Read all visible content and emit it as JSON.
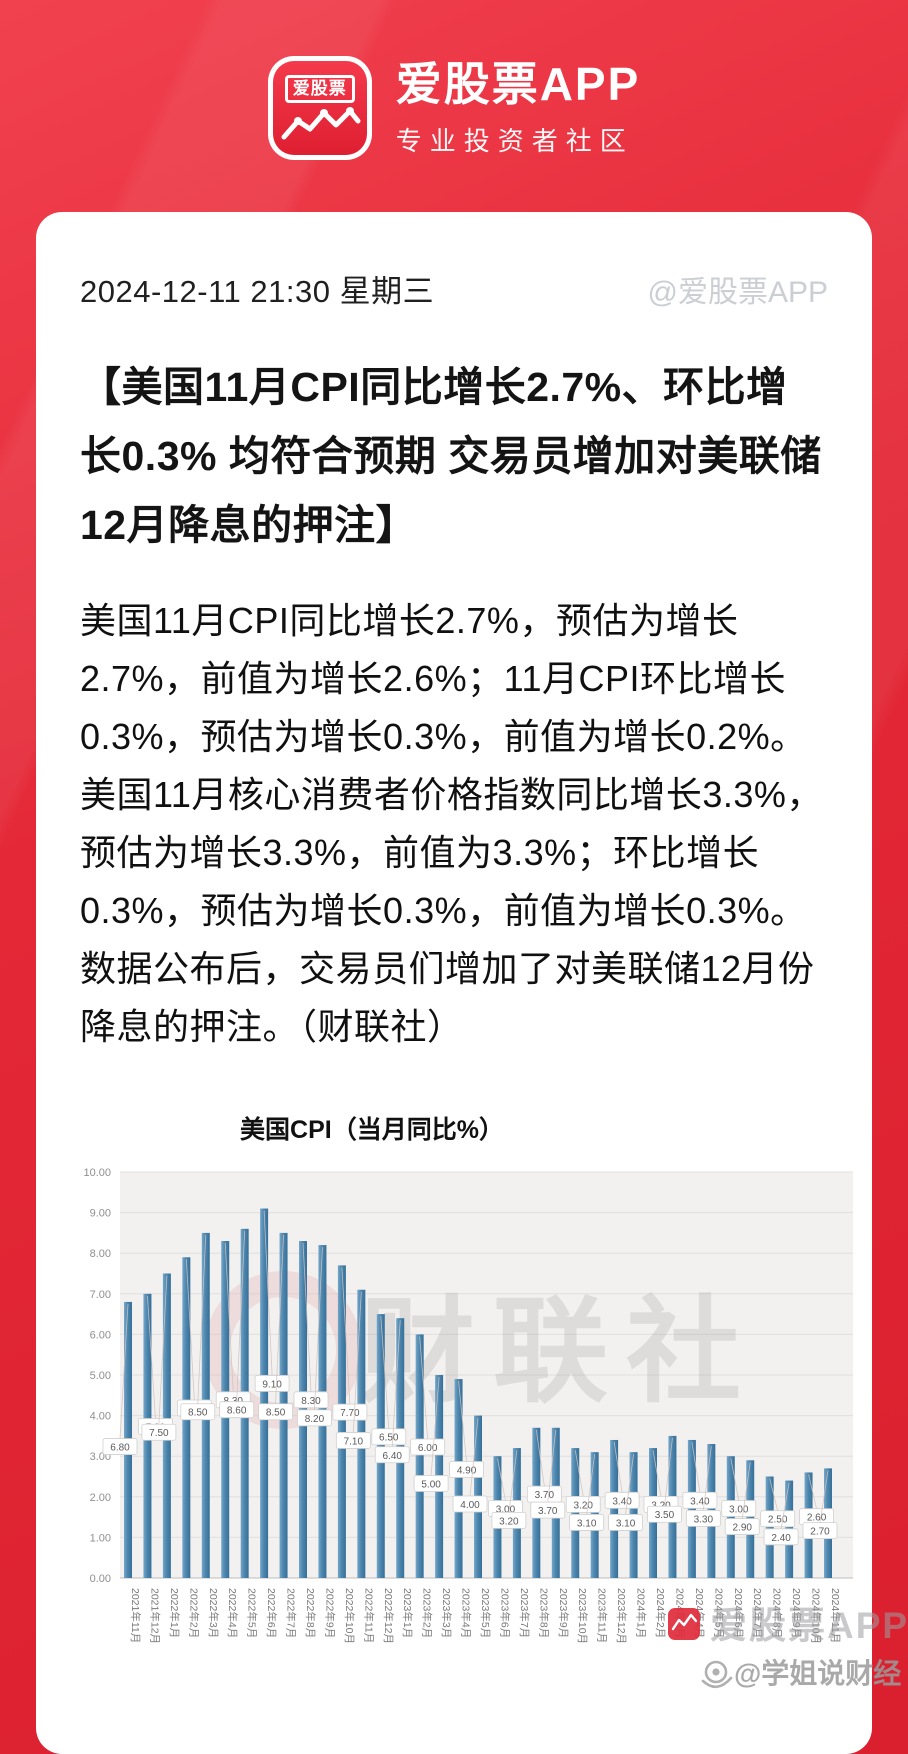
{
  "header": {
    "logo_text": "爱股票",
    "app_name": "爱股票APP",
    "tagline": "专业投资者社区"
  },
  "post": {
    "date": "2024-12-11 21:30 星期三",
    "author_handle": "@爱股票APP",
    "title": "【美国11月CPI同比增长2.7%、环比增长0.3% 均符合预期 交易员增加对美联储12月降息的押注】",
    "body": "美国11月CPI同比增长2.7%，预估为增长2.7%，前值为增长2.6%；11月CPI环比增长0.3%，预估为增长0.3%，前值为增长0.2%。美国11月核心消费者价格指数同比增长3.3%，预估为增长3.3%，前值为3.3%；环比增长0.3%，预估为增长0.3%，前值为增长0.3%。数据公布后，交易员们增加了对美联储12月份降息的押注。（财联社）"
  },
  "chart_data": {
    "type": "bar",
    "title": "美国CPI（当月同比%）",
    "categories": [
      "2021年11月",
      "2021年12月",
      "2022年1月",
      "2022年2月",
      "2022年3月",
      "2022年4月",
      "2022年5月",
      "2022年6月",
      "2022年7月",
      "2022年8月",
      "2022年9月",
      "2022年10月",
      "2022年11月",
      "2022年12月",
      "2023年1月",
      "2023年2月",
      "2023年3月",
      "2023年4月",
      "2023年5月",
      "2023年6月",
      "2023年7月",
      "2023年8月",
      "2023年9月",
      "2023年10月",
      "2023年11月",
      "2023年12月",
      "2024年1月",
      "2024年2月",
      "2024年3月",
      "2024年4月",
      "2024年5月",
      "2024年6月",
      "2024年7月",
      "2024年8月",
      "2024年9月",
      "2024年10月",
      "2024年11月"
    ],
    "values": [
      6.8,
      7.0,
      7.5,
      7.9,
      8.5,
      8.3,
      8.6,
      9.1,
      8.5,
      8.3,
      8.2,
      7.7,
      7.1,
      6.5,
      6.4,
      6.0,
      5.0,
      4.9,
      4.0,
      3.0,
      3.2,
      3.7,
      3.7,
      3.2,
      3.1,
      3.4,
      3.1,
      3.2,
      3.5,
      3.4,
      3.3,
      3.0,
      2.9,
      2.5,
      2.4,
      2.6,
      2.7
    ],
    "ylim": [
      0,
      10
    ],
    "ytick_step": 1,
    "grid": true,
    "legend": "none",
    "xlabel": "",
    "ylabel": "",
    "bar_color": "#4e86ad",
    "watermarks": {
      "center_logo_icon": "cailianshe-circle-logo",
      "center_text": "财联社",
      "app_icon": "aigupiao-app-icon",
      "app_text": "爱股票APP",
      "weibo_icon": "weibo-eye-icon",
      "weibo_handle": "@学姐说财经"
    }
  },
  "colors": {
    "background_red": "#e02331",
    "card_bg": "#ffffff",
    "accent_red": "#e8313f",
    "bar_blue": "#4e86ad",
    "plot_bg": "#f2f1ef",
    "muted_text": "#cbced3"
  }
}
